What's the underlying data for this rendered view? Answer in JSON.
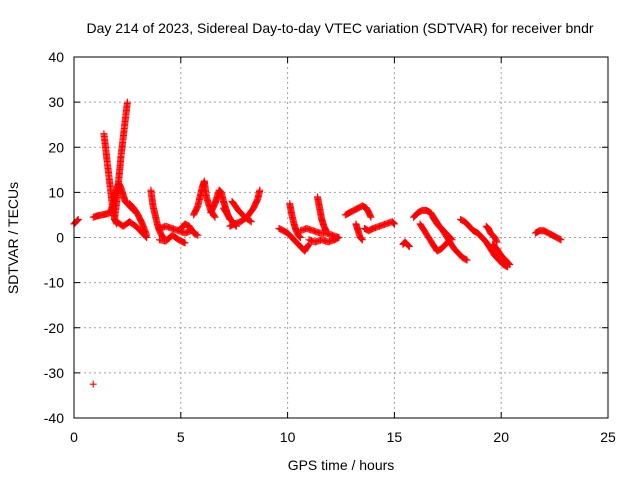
{
  "colors": {
    "series": "#ff0000",
    "axis": "#000000",
    "grid": "#a0a0a0",
    "background": "#ffffff"
  },
  "chart_data": {
    "type": "scatter",
    "title": "Day 214 of 2023, Sidereal Day-to-day VTEC variation (SDTVAR) for receiver bndr",
    "xlabel": "GPS time / hours",
    "ylabel": "SDTVAR / TECUs",
    "xlim": [
      0,
      25
    ],
    "ylim": [
      -40,
      40
    ],
    "xticks": [
      0,
      5,
      10,
      15,
      20,
      25
    ],
    "yticks": [
      -40,
      -30,
      -20,
      -10,
      0,
      10,
      20,
      30,
      40
    ],
    "grid": true,
    "marker": "plus",
    "tracks": [
      {
        "x": [
          0.0,
          0.1,
          0.2
        ],
        "y": [
          3.0,
          3.5,
          4.0
        ]
      },
      {
        "x": [
          0.9,
          1.1,
          1.3,
          1.5,
          1.7,
          1.8,
          1.9,
          2.0,
          2.1,
          2.2,
          2.3,
          2.4,
          2.5,
          2.6,
          2.7,
          2.8
        ],
        "y": [
          4.5,
          4.8,
          5.0,
          5.2,
          5.5,
          7.0,
          9.0,
          11.0,
          12.0,
          11.0,
          9.5,
          8.0,
          7.5,
          7.0,
          6.5,
          6.0
        ]
      },
      {
        "x": [
          1.4,
          1.5,
          1.6,
          1.7,
          1.8,
          1.9,
          2.0
        ],
        "y": [
          23.0,
          19.0,
          15.0,
          11.0,
          7.0,
          4.0,
          3.0
        ]
      },
      {
        "x": [
          1.9,
          2.0,
          2.1,
          2.2,
          2.3,
          2.4,
          2.5
        ],
        "y": [
          4.0,
          8.0,
          13.0,
          18.0,
          22.0,
          26.0,
          30.0
        ]
      },
      {
        "x": [
          2.0,
          2.3,
          2.6,
          2.9,
          3.2,
          3.4
        ],
        "y": [
          3.5,
          2.5,
          3.5,
          2.5,
          1.0,
          0.0
        ]
      },
      {
        "x": [
          2.6,
          2.8,
          3.0,
          3.2,
          3.4
        ],
        "y": [
          7.5,
          6.5,
          5.0,
          3.0,
          0.5
        ]
      },
      {
        "x": [
          3.6,
          3.7,
          3.8,
          3.9,
          4.0,
          4.1,
          4.2
        ],
        "y": [
          10.5,
          7.0,
          5.0,
          3.0,
          1.5,
          0.5,
          0.0
        ]
      },
      {
        "x": [
          4.0,
          4.3,
          4.6,
          4.9,
          5.2,
          5.5
        ],
        "y": [
          2.0,
          2.5,
          2.0,
          1.5,
          1.0,
          1.5
        ]
      },
      {
        "x": [
          4.0,
          4.3,
          4.6,
          4.9,
          5.2
        ],
        "y": [
          -0.5,
          -0.8,
          0.5,
          -0.5,
          -1.2
        ]
      },
      {
        "x": [
          5.0,
          5.2,
          5.4,
          5.6,
          5.8
        ],
        "y": [
          2.0,
          3.0,
          2.5,
          1.0,
          0.5
        ]
      },
      {
        "x": [
          5.6,
          5.8,
          5.9,
          6.0,
          6.1,
          6.2,
          6.4,
          6.6
        ],
        "y": [
          5.0,
          7.0,
          9.0,
          11.0,
          12.5,
          9.0,
          6.0,
          4.5
        ]
      },
      {
        "x": [
          6.4,
          6.6,
          6.7,
          6.8,
          6.9,
          7.0,
          7.1,
          7.2,
          7.3
        ],
        "y": [
          5.5,
          7.5,
          9.0,
          10.5,
          10.0,
          8.0,
          6.5,
          5.0,
          4.0
        ]
      },
      {
        "x": [
          7.0,
          7.2,
          7.4,
          7.6
        ],
        "y": [
          6.5,
          5.0,
          3.5,
          2.5
        ]
      },
      {
        "x": [
          7.3,
          7.5,
          7.8,
          8.1,
          8.4,
          8.6,
          8.7
        ],
        "y": [
          2.5,
          3.0,
          3.5,
          4.5,
          6.5,
          8.5,
          10.5
        ]
      },
      {
        "x": [
          7.4,
          7.7,
          8.0,
          8.3
        ],
        "y": [
          8.0,
          6.0,
          4.5,
          3.5
        ]
      },
      {
        "x": [
          9.6,
          9.8,
          10.0,
          10.2,
          10.4,
          10.6,
          10.8,
          11.0
        ],
        "y": [
          2.0,
          1.5,
          1.0,
          0.0,
          -1.0,
          -2.0,
          -3.0,
          -1.5
        ]
      },
      {
        "x": [
          10.1,
          10.2,
          10.3,
          10.4,
          10.5,
          10.6
        ],
        "y": [
          7.5,
          5.0,
          3.0,
          1.5,
          0.5,
          0.0
        ]
      },
      {
        "x": [
          10.6,
          10.9,
          11.2,
          11.5,
          11.8,
          12.1,
          12.4
        ],
        "y": [
          1.5,
          2.0,
          1.5,
          1.0,
          1.0,
          0.5,
          0.0
        ]
      },
      {
        "x": [
          11.4,
          11.5,
          11.6,
          11.7,
          11.8
        ],
        "y": [
          9.0,
          6.5,
          4.0,
          2.5,
          1.5
        ]
      },
      {
        "x": [
          11.0,
          11.3,
          11.6,
          11.9,
          12.2,
          12.4
        ],
        "y": [
          -0.5,
          -1.0,
          -0.5,
          -1.0,
          -0.5,
          0.0
        ]
      },
      {
        "x": [
          12.7,
          12.9,
          13.1,
          13.3,
          13.5,
          13.7,
          13.8,
          13.9
        ],
        "y": [
          5.0,
          5.5,
          6.0,
          6.5,
          7.0,
          6.5,
          5.5,
          4.5
        ]
      },
      {
        "x": [
          13.2,
          13.3,
          13.4,
          13.5
        ],
        "y": [
          3.0,
          1.5,
          0.0,
          -0.5
        ]
      },
      {
        "x": [
          13.6,
          13.8,
          14.0,
          14.3,
          14.6,
          14.9,
          15.0
        ],
        "y": [
          2.0,
          1.5,
          2.0,
          2.5,
          3.0,
          3.5,
          3.0
        ]
      },
      {
        "x": [
          15.4,
          15.5,
          15.6,
          15.7
        ],
        "y": [
          -1.5,
          -1.0,
          -1.5,
          -2.0
        ]
      },
      {
        "x": [
          15.9,
          16.1,
          16.3,
          16.5,
          16.7,
          16.9,
          17.1,
          17.3,
          17.5,
          17.7
        ],
        "y": [
          4.5,
          5.5,
          6.0,
          6.0,
          5.5,
          4.0,
          2.5,
          1.5,
          0.5,
          -0.5
        ]
      },
      {
        "x": [
          16.2,
          16.4,
          16.6,
          16.8,
          17.0,
          17.2,
          17.4,
          17.6
        ],
        "y": [
          3.0,
          1.5,
          0.0,
          -1.5,
          -3.0,
          -2.5,
          -1.5,
          -0.5
        ]
      },
      {
        "x": [
          16.8,
          17.0,
          17.2,
          17.4,
          17.6,
          17.8,
          18.0,
          18.2,
          18.4
        ],
        "y": [
          4.5,
          3.0,
          2.0,
          0.5,
          -1.0,
          -2.5,
          -3.5,
          -4.5,
          -5.0
        ]
      },
      {
        "x": [
          18.1,
          18.3,
          18.5,
          18.7,
          18.9
        ],
        "y": [
          4.0,
          3.5,
          2.5,
          1.5,
          1.0
        ]
      },
      {
        "x": [
          18.9,
          19.1,
          19.3,
          19.5,
          19.7,
          19.9,
          20.1,
          20.3
        ],
        "y": [
          1.0,
          0.0,
          -1.0,
          -2.5,
          -4.0,
          -5.0,
          -6.0,
          -6.5
        ]
      },
      {
        "x": [
          19.3,
          19.4,
          19.5,
          19.6,
          19.7,
          19.8
        ],
        "y": [
          2.5,
          2.0,
          1.0,
          0.5,
          0.0,
          -1.0
        ]
      },
      {
        "x": [
          19.6,
          19.8,
          20.0,
          20.2,
          20.4
        ],
        "y": [
          -1.5,
          -2.5,
          -4.0,
          -5.0,
          -6.0
        ]
      },
      {
        "x": [
          21.6,
          21.8,
          22.0,
          22.2,
          22.4,
          22.6,
          22.8
        ],
        "y": [
          1.0,
          1.5,
          1.5,
          1.0,
          0.5,
          0.0,
          -0.5
        ]
      },
      {
        "x": [
          0.9
        ],
        "y": [
          -32.5
        ]
      }
    ]
  }
}
